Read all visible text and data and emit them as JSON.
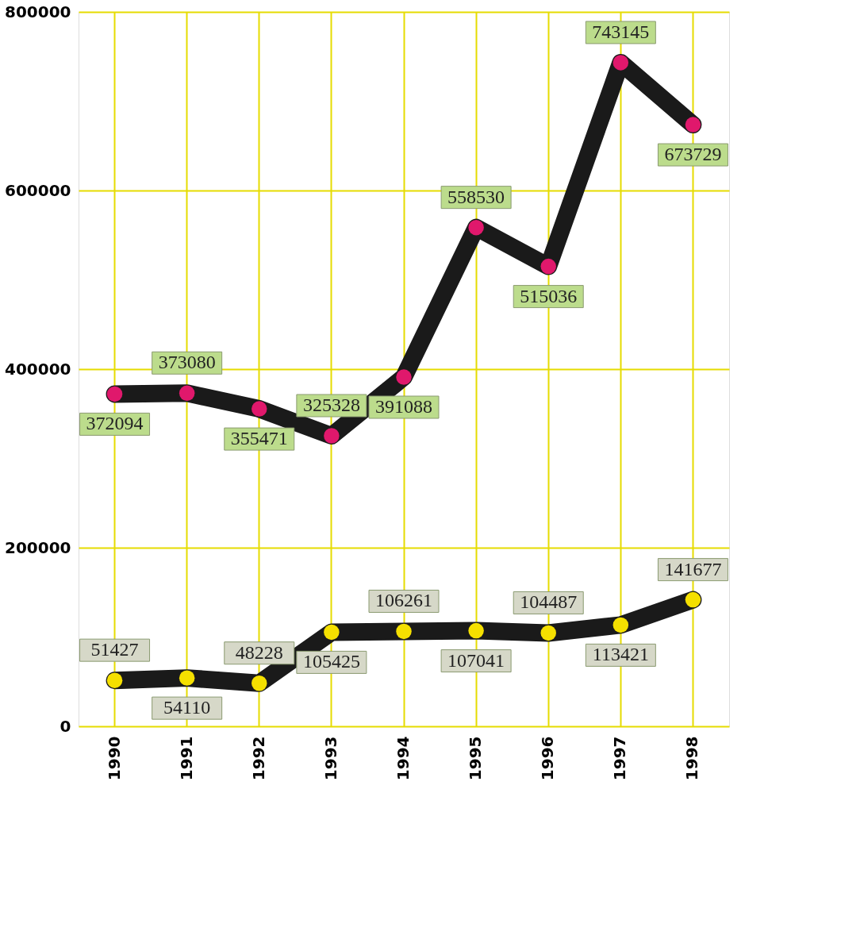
{
  "chart_data": {
    "type": "line",
    "categories": [
      "1990",
      "1991",
      "1992",
      "1993",
      "1994",
      "1995",
      "1996",
      "1997",
      "1998"
    ],
    "series": [
      {
        "color": "#e0186c",
        "values": [
          372094,
          373080,
          355471,
          325328,
          391088,
          558530,
          515036,
          743145,
          673729
        ]
      },
      {
        "color": "#f5e000",
        "values": [
          51427,
          54110,
          48228,
          105425,
          106261,
          107041,
          104487,
          113421,
          141677
        ]
      }
    ],
    "ylim": [
      0,
      800000
    ],
    "yticks": [
      0,
      200000,
      400000,
      600000,
      800000
    ],
    "grid": true,
    "marker": "circle",
    "line_style": "solid",
    "data_labels": true
  }
}
